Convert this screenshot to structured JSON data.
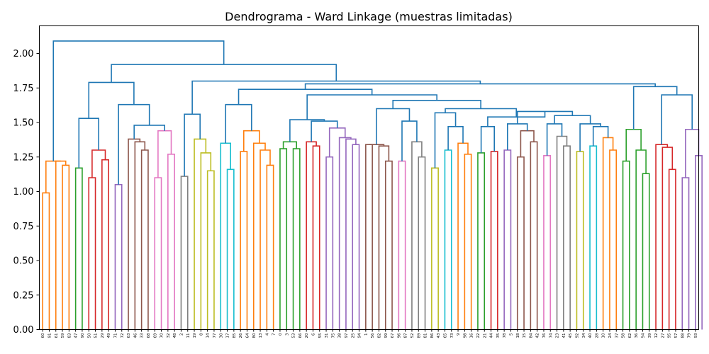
{
  "chart_data": {
    "type": "dendrogram",
    "title": "Dendrograma - Ward Linkage (muestras limitadas)",
    "xlabel": "",
    "ylabel": "",
    "ylim": [
      0,
      2.2
    ],
    "yticks": [
      "0.00",
      "0.25",
      "0.50",
      "0.75",
      "1.00",
      "1.25",
      "1.50",
      "1.75",
      "2.00"
    ],
    "grid": false,
    "above_threshold_color": "#1f77b4",
    "leaves": [
      "60",
      "91",
      "61",
      "59",
      "83",
      "47",
      "90",
      "50",
      "51",
      "29",
      "49",
      "71",
      "72",
      "63",
      "46",
      "33",
      "68",
      "69",
      "70",
      "32",
      "48",
      "2",
      "11",
      "19",
      "8",
      "14",
      "77",
      "30",
      "17",
      "85",
      "26",
      "64",
      "80",
      "13",
      "4",
      "7",
      "0",
      "3",
      "53",
      "66",
      "20",
      "6",
      "55",
      "31",
      "75",
      "38",
      "97",
      "25",
      "94",
      "1",
      "56",
      "82",
      "99",
      "67",
      "96",
      "87",
      "52",
      "89",
      "81",
      "86",
      "43",
      "65",
      "73",
      "9",
      "98",
      "16",
      "22",
      "21",
      "44",
      "35",
      "78",
      "5",
      "18",
      "15",
      "84",
      "42",
      "76",
      "74",
      "23",
      "41",
      "45",
      "92",
      "34",
      "40",
      "28",
      "10",
      "24",
      "37",
      "58",
      "62",
      "36",
      "54",
      "39",
      "12",
      "27",
      "95",
      "57",
      "88",
      "79",
      "93"
    ],
    "links": [
      {
        "c": "#ff7f0e",
        "y": [
          0.99
        ],
        "ch": [
          0,
          1
        ]
      },
      {
        "c": "#ff7f0e",
        "y": [
          1.19
        ],
        "ch": [
          3,
          4
        ]
      },
      {
        "c": "#ff7f0e",
        "y": [
          1.22
        ],
        "ch": [
          2,
          "L1"
        ]
      },
      {
        "c": "#ff7f0e",
        "y": [
          1.22
        ],
        "ch": [
          "L0",
          "L2"
        ]
      },
      {
        "c": "#2ca02c",
        "y": [
          1.17
        ],
        "ch": [
          5,
          6
        ]
      },
      {
        "c": "#d62728",
        "y": [
          1.1
        ],
        "ch": [
          7,
          8
        ]
      },
      {
        "c": "#d62728",
        "y": [
          1.23
        ],
        "ch": [
          9,
          10
        ]
      },
      {
        "c": "#d62728",
        "y": [
          1.3
        ],
        "ch": [
          "L5",
          "L6"
        ]
      },
      {
        "c": "#9467bd",
        "y": [
          1.05
        ],
        "ch": [
          11,
          12
        ]
      },
      {
        "c": "#8c564b",
        "y": [
          1.3
        ],
        "ch": [
          15,
          16
        ]
      },
      {
        "c": "#8c564b",
        "y": [
          1.36
        ],
        "ch": [
          14,
          "L9"
        ]
      },
      {
        "c": "#8c564b",
        "y": [
          1.38
        ],
        "ch": [
          13,
          "L10"
        ]
      },
      {
        "c": "#e377c2",
        "y": [
          1.1
        ],
        "ch": [
          17,
          18
        ]
      },
      {
        "c": "#e377c2",
        "y": [
          1.27
        ],
        "ch": [
          19,
          20
        ]
      },
      {
        "c": "#e377c2",
        "y": [
          1.44
        ],
        "ch": [
          "L12",
          "L13"
        ]
      },
      {
        "c": "#7f7f7f",
        "y": [
          1.11
        ],
        "ch": [
          21,
          22
        ]
      },
      {
        "c": "#bcbd22",
        "y": [
          1.15
        ],
        "ch": [
          25,
          26
        ]
      },
      {
        "c": "#bcbd22",
        "y": [
          1.28
        ],
        "ch": [
          24,
          "L16"
        ]
      },
      {
        "c": "#bcbd22",
        "y": [
          1.38
        ],
        "ch": [
          23,
          "L17"
        ]
      },
      {
        "c": "#17becf",
        "y": [
          1.16
        ],
        "ch": [
          28,
          29
        ]
      },
      {
        "c": "#17becf",
        "y": [
          1.35
        ],
        "ch": [
          27,
          "L19"
        ]
      },
      {
        "c": "#ff7f0e",
        "y": [
          1.29
        ],
        "ch": [
          30,
          31
        ]
      },
      {
        "c": "#ff7f0e",
        "y": [
          1.19
        ],
        "ch": [
          34,
          35
        ]
      },
      {
        "c": "#ff7f0e",
        "y": [
          1.3
        ],
        "ch": [
          33,
          "L22"
        ]
      },
      {
        "c": "#ff7f0e",
        "y": [
          1.35
        ],
        "ch": [
          32,
          "L23"
        ]
      },
      {
        "c": "#ff7f0e",
        "y": [
          1.44
        ],
        "ch": [
          "L21",
          "L24"
        ]
      },
      {
        "c": "#2ca02c",
        "y": [
          1.31
        ],
        "ch": [
          36,
          37
        ]
      },
      {
        "c": "#2ca02c",
        "y": [
          1.31
        ],
        "ch": [
          38,
          39
        ]
      },
      {
        "c": "#2ca02c",
        "y": [
          1.36
        ],
        "ch": [
          "L26",
          "L27"
        ]
      },
      {
        "c": "#d62728",
        "y": [
          1.33
        ],
        "ch": [
          41,
          42
        ]
      },
      {
        "c": "#d62728",
        "y": [
          1.36
        ],
        "ch": [
          40,
          "L29"
        ]
      },
      {
        "c": "#9467bd",
        "y": [
          1.25
        ],
        "ch": [
          43,
          44
        ]
      },
      {
        "c": "#9467bd",
        "y": [
          1.34
        ],
        "ch": [
          47,
          48
        ]
      },
      {
        "c": "#9467bd",
        "y": [
          1.38
        ],
        "ch": [
          46,
          "L32"
        ]
      },
      {
        "c": "#9467bd",
        "y": [
          1.39
        ],
        "ch": [
          45,
          "L33"
        ]
      },
      {
        "c": "#9467bd",
        "y": [
          1.46
        ],
        "ch": [
          "L31",
          "L34"
        ]
      },
      {
        "c": "#8c564b",
        "y": [
          1.22
        ],
        "ch": [
          52,
          53
        ]
      },
      {
        "c": "#8c564b",
        "y": [
          1.33
        ],
        "ch": [
          51,
          "L36"
        ]
      },
      {
        "c": "#8c564b",
        "y": [
          1.34
        ],
        "ch": [
          49,
          50
        ]
      },
      {
        "c": "#8c564b",
        "y": [
          1.34
        ],
        "ch": [
          "L38",
          "L37"
        ]
      },
      {
        "c": "#e377c2",
        "y": [
          1.22
        ],
        "ch": [
          54,
          55
        ]
      },
      {
        "c": "#7f7f7f",
        "y": [
          1.25
        ],
        "ch": [
          57,
          58
        ]
      },
      {
        "c": "#7f7f7f",
        "y": [
          1.36
        ],
        "ch": [
          56,
          "L41"
        ]
      },
      {
        "c": "#bcbd22",
        "y": [
          1.17
        ],
        "ch": [
          59,
          60
        ]
      },
      {
        "c": "#17becf",
        "y": [
          1.3
        ],
        "ch": [
          61,
          62
        ]
      },
      {
        "c": "#ff7f0e",
        "y": [
          1.27
        ],
        "ch": [
          64,
          65
        ]
      },
      {
        "c": "#ff7f0e",
        "y": [
          1.35
        ],
        "ch": [
          63,
          "L45"
        ]
      },
      {
        "c": "#2ca02c",
        "y": [
          1.28
        ],
        "ch": [
          66,
          67
        ]
      },
      {
        "c": "#d62728",
        "y": [
          1.29
        ],
        "ch": [
          68,
          69
        ]
      },
      {
        "c": "#9467bd",
        "y": [
          1.3
        ],
        "ch": [
          70,
          71
        ]
      },
      {
        "c": "#8c564b",
        "y": [
          1.25
        ],
        "ch": [
          72,
          73
        ]
      },
      {
        "c": "#8c564b",
        "y": [
          1.36
        ],
        "ch": [
          74,
          75
        ]
      },
      {
        "c": "#8c564b",
        "y": [
          1.44
        ],
        "ch": [
          "L50",
          "L51"
        ]
      },
      {
        "c": "#e377c2",
        "y": [
          1.26
        ],
        "ch": [
          76,
          77
        ]
      },
      {
        "c": "#7f7f7f",
        "y": [
          1.33
        ],
        "ch": [
          79,
          80
        ]
      },
      {
        "c": "#7f7f7f",
        "y": [
          1.4
        ],
        "ch": [
          78,
          "L54"
        ]
      },
      {
        "c": "#bcbd22",
        "y": [
          1.29
        ],
        "ch": [
          81,
          82
        ]
      },
      {
        "c": "#17becf",
        "y": [
          1.33
        ],
        "ch": [
          83,
          84
        ]
      },
      {
        "c": "#ff7f0e",
        "y": [
          1.3
        ],
        "ch": [
          86,
          87
        ]
      },
      {
        "c": "#ff7f0e",
        "y": [
          1.39
        ],
        "ch": [
          85,
          "L58"
        ]
      },
      {
        "c": "#2ca02c",
        "y": [
          1.22
        ],
        "ch": [
          88,
          89
        ]
      },
      {
        "c": "#2ca02c",
        "y": [
          1.13
        ],
        "ch": [
          91,
          92
        ]
      },
      {
        "c": "#2ca02c",
        "y": [
          1.3
        ],
        "ch": [
          90,
          "L61"
        ]
      },
      {
        "c": "#2ca02c",
        "y": [
          1.45
        ],
        "ch": [
          "L60",
          "L62"
        ]
      },
      {
        "c": "#d62728",
        "y": [
          1.16
        ],
        "ch": [
          95,
          96
        ]
      },
      {
        "c": "#d62728",
        "y": [
          1.32
        ],
        "ch": [
          94,
          "L64"
        ]
      },
      {
        "c": "#d62728",
        "y": [
          1.34
        ],
        "ch": [
          93,
          "L65"
        ]
      },
      {
        "c": "#9467bd",
        "y": [
          1.1
        ],
        "ch": [
          97,
          98
        ]
      },
      {
        "c": "#9467bd",
        "y": [
          1.26
        ],
        "ch": [
          99,
          100
        ]
      },
      {
        "c": "#9467bd",
        "y": [
          1.45
        ],
        "ch": [
          "L67",
          "L68"
        ]
      },
      {
        "c": "#1f77b4",
        "y": [
          1.53
        ],
        "ch": [
          "L4",
          "L7"
        ]
      },
      {
        "c": "#1f77b4",
        "y": [
          1.48
        ],
        "ch": [
          "L11",
          "L14"
        ]
      },
      {
        "c": "#1f77b4",
        "y": [
          1.63
        ],
        "ch": [
          "L8",
          "L71"
        ]
      },
      {
        "c": "#1f77b4",
        "y": [
          1.79
        ],
        "ch": [
          "L70",
          "L72"
        ]
      },
      {
        "c": "#1f77b4",
        "y": [
          1.56
        ],
        "ch": [
          "L15",
          "L18"
        ]
      },
      {
        "c": "#1f77b4",
        "y": [
          1.63
        ],
        "ch": [
          "L20",
          "L25"
        ]
      },
      {
        "c": "#1f77b4",
        "y": [
          1.51
        ],
        "ch": [
          "L30",
          "L35"
        ]
      },
      {
        "c": "#1f77b4",
        "y": [
          1.52
        ],
        "ch": [
          "L28",
          "L76"
        ]
      },
      {
        "c": "#1f77b4",
        "y": [
          1.51
        ],
        "ch": [
          "L40",
          "L42"
        ]
      },
      {
        "c": "#1f77b4",
        "y": [
          1.6
        ],
        "ch": [
          "L39",
          "L78"
        ]
      },
      {
        "c": "#1f77b4",
        "y": [
          1.47
        ],
        "ch": [
          "L44",
          "L46"
        ]
      },
      {
        "c": "#1f77b4",
        "y": [
          1.57
        ],
        "ch": [
          "L43",
          "L80"
        ]
      },
      {
        "c": "#1f77b4",
        "y": [
          1.47
        ],
        "ch": [
          "L47",
          "L48"
        ]
      },
      {
        "c": "#1f77b4",
        "y": [
          1.49
        ],
        "ch": [
          "L49",
          "L52"
        ]
      },
      {
        "c": "#1f77b4",
        "y": [
          1.49
        ],
        "ch": [
          "L53",
          "L55"
        ]
      },
      {
        "c": "#1f77b4",
        "y": [
          1.47
        ],
        "ch": [
          "L57",
          "L59"
        ]
      },
      {
        "c": "#1f77b4",
        "y": [
          1.49
        ],
        "ch": [
          "L56",
          "L85"
        ]
      },
      {
        "c": "#1f77b4",
        "y": [
          1.55
        ],
        "ch": [
          "L84",
          "L86"
        ]
      },
      {
        "c": "#1f77b4",
        "y": [
          1.58
        ],
        "ch": [
          "L83",
          "L87"
        ]
      },
      {
        "c": "#1f77b4",
        "y": [
          1.54
        ],
        "ch": [
          "L82",
          "L88"
        ]
      },
      {
        "c": "#1f77b4",
        "y": [
          1.6
        ],
        "ch": [
          "L81",
          "L89"
        ]
      },
      {
        "c": "#1f77b4",
        "y": [
          1.66
        ],
        "ch": [
          "L79",
          "L90"
        ]
      },
      {
        "c": "#1f77b4",
        "y": [
          1.7
        ],
        "ch": [
          "L77",
          "L91"
        ]
      },
      {
        "c": "#1f77b4",
        "y": [
          1.74
        ],
        "ch": [
          "L75",
          "L92"
        ]
      },
      {
        "c": "#1f77b4",
        "y": [
          1.7
        ],
        "ch": [
          "L66",
          "L69"
        ]
      },
      {
        "c": "#1f77b4",
        "y": [
          1.76
        ],
        "ch": [
          "L63",
          "L94"
        ]
      },
      {
        "c": "#1f77b4",
        "y": [
          1.78
        ],
        "ch": [
          "L93",
          "L95"
        ]
      },
      {
        "c": "#1f77b4",
        "y": [
          1.8
        ],
        "ch": [
          "L74",
          "L96"
        ]
      },
      {
        "c": "#1f77b4",
        "y": [
          1.92
        ],
        "ch": [
          "L73",
          "L97"
        ]
      },
      {
        "c": "#1f77b4",
        "y": [
          2.09
        ],
        "ch": [
          "L3",
          "L98"
        ]
      }
    ]
  }
}
